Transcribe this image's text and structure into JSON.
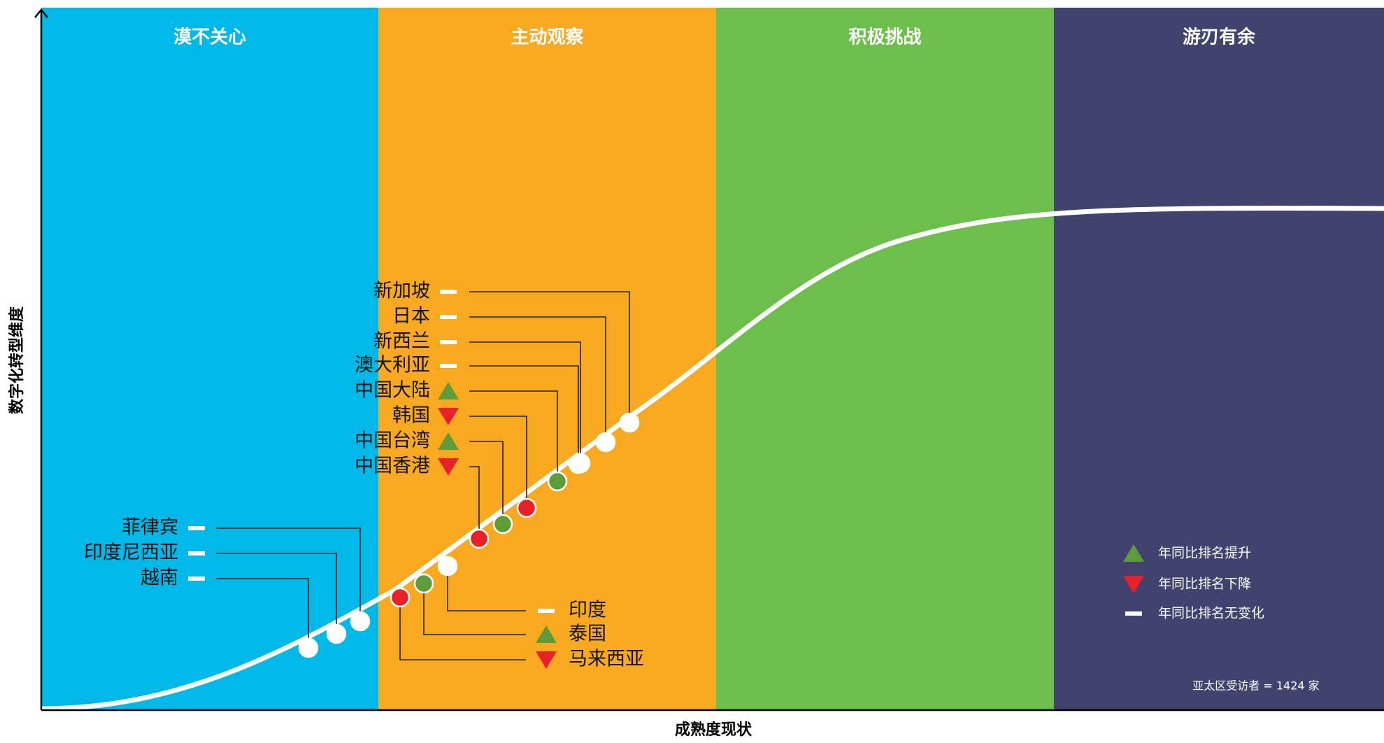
{
  "chart_data": {
    "type": "scatter",
    "xlabel": "成熟度现状",
    "ylabel": "数字化转型维度",
    "zones": [
      {
        "name": "漠不关心",
        "color": "#00b9e8"
      },
      {
        "name": "主动观察",
        "color": "#f8a91f"
      },
      {
        "name": "积极挑战",
        "color": "#6cbf4a"
      },
      {
        "name": "游刃有余",
        "color": "#41436e"
      }
    ],
    "countries": [
      {
        "name": "越南",
        "change": "same"
      },
      {
        "name": "印度尼西亚",
        "change": "same"
      },
      {
        "name": "菲律宾",
        "change": "same"
      },
      {
        "name": "马来西亚",
        "change": "down"
      },
      {
        "name": "泰国",
        "change": "up"
      },
      {
        "name": "印度",
        "change": "same"
      },
      {
        "name": "中国香港",
        "change": "down"
      },
      {
        "name": "中国台湾",
        "change": "up"
      },
      {
        "name": "韩国",
        "change": "down"
      },
      {
        "name": "中国大陆",
        "change": "up"
      },
      {
        "name": "澳大利亚",
        "change": "same"
      },
      {
        "name": "新西兰",
        "change": "same"
      },
      {
        "name": "日本",
        "change": "same"
      },
      {
        "name": "新加坡",
        "change": "same"
      }
    ],
    "legend": [
      {
        "key": "up",
        "label": "年同比排名提升"
      },
      {
        "key": "down",
        "label": "年同比排名下降"
      },
      {
        "key": "same",
        "label": "年同比排名无变化"
      }
    ],
    "note": "亚太区受访者 = 1424 家",
    "colors": {
      "up": "#5e9c3a",
      "down": "#e8202a",
      "same": "#ffffff",
      "curve": "#ffffff",
      "leader": "#222222"
    }
  }
}
